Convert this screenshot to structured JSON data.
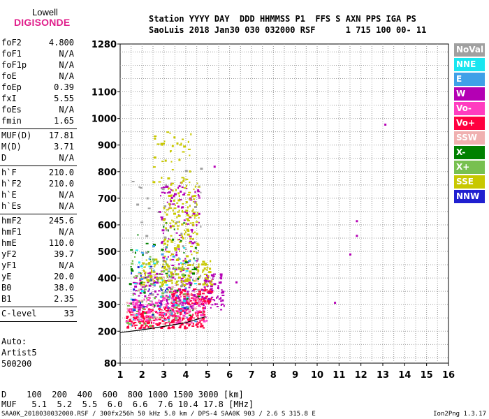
{
  "header": {
    "line1": "Station YYYY DAY  DDD HHMMSS P1  FFS S AXN PPS IGA PS",
    "line2": "SaoLuis 2018 Jan30 030 032000 RSF      1 715 100 00- 11"
  },
  "logo": {
    "line1": "Lowell",
    "line2": "DIGISONDE"
  },
  "params": [
    {
      "name": "foF2",
      "value": "4.800"
    },
    {
      "name": "foF1",
      "value": "N/A"
    },
    {
      "name": "foF1p",
      "value": "N/A"
    },
    {
      "name": "foE",
      "value": "N/A"
    },
    {
      "name": "foEp",
      "value": "0.39"
    },
    {
      "name": "fxI",
      "value": "5.55"
    },
    {
      "name": "foEs",
      "value": "N/A"
    },
    {
      "name": "fmin",
      "value": "1.65"
    },
    {
      "name": "MUF(D)",
      "value": "17.81"
    },
    {
      "name": "M(D)",
      "value": "3.71"
    },
    {
      "name": "D",
      "value": "N/A"
    },
    {
      "name": "h`F",
      "value": "210.0"
    },
    {
      "name": "h`F2",
      "value": "210.0"
    },
    {
      "name": "h`E",
      "value": "N/A"
    },
    {
      "name": "h`Es",
      "value": "N/A"
    },
    {
      "name": "hmF2",
      "value": "245.6"
    },
    {
      "name": "hmF1",
      "value": "N/A"
    },
    {
      "name": "hmE",
      "value": "110.0"
    },
    {
      "name": "yF2",
      "value": "39.7"
    },
    {
      "name": "yF1",
      "value": "N/A"
    },
    {
      "name": "yE",
      "value": "20.0"
    },
    {
      "name": "B0",
      "value": "38.0"
    },
    {
      "name": "B1",
      "value": "2.35"
    },
    {
      "name": "C-level",
      "value": "33"
    }
  ],
  "auto": [
    "Auto:",
    "Artist5",
    "500200"
  ],
  "legend": [
    {
      "label": "NoVal",
      "color": "#a0a0a0"
    },
    {
      "label": "NNE",
      "color": "#19e6f0"
    },
    {
      "label": "E",
      "color": "#3fa0e8"
    },
    {
      "label": "W",
      "color": "#b400b4"
    },
    {
      "label": "Vo-",
      "color": "#ff3cc0"
    },
    {
      "label": "Vo+",
      "color": "#ff0040"
    },
    {
      "label": "SSW",
      "color": "#f0b0b0"
    },
    {
      "label": "X-",
      "color": "#008000"
    },
    {
      "label": "X+",
      "color": "#78c050"
    },
    {
      "label": "SSE",
      "color": "#c8c800"
    },
    {
      "label": "NNW",
      "color": "#2020d0"
    }
  ],
  "footer": {
    "d_line": "D    100  200  400  600  800 1000 1500 3000 [km]",
    "muf_line": "MUF   5.1  5.2  5.5  6.0  6.6  7.6 10.4 17.8 [MHz]",
    "file_info": "SAA0K_2018030032000.RSF / 300fx256h 50 kHz 5.0 km / DPS-4 SAA0K 903 / 2.6 S 315.8 E",
    "version": "Ion2Png 1.3.17"
  },
  "chart_data": {
    "type": "scatter",
    "title": "",
    "xlabel": "",
    "ylabel": "",
    "xlim": [
      1,
      16
    ],
    "ylim": [
      80,
      1280
    ],
    "xticks": [
      1,
      2,
      3,
      4,
      5,
      6,
      7,
      8,
      9,
      10,
      11,
      12,
      13,
      14,
      15,
      16
    ],
    "yticks": [
      80,
      200,
      300,
      400,
      500,
      600,
      700,
      800,
      900,
      1000,
      1100,
      1280
    ],
    "grid": true,
    "legend_placement": "right",
    "trace_line": [
      [
        1.0,
        195
      ],
      [
        2.0,
        205
      ],
      [
        3.0,
        218
      ],
      [
        4.0,
        232
      ],
      [
        4.9,
        255
      ]
    ],
    "outliers": [
      [
        11.8,
        615
      ],
      [
        11.8,
        560
      ],
      [
        11.5,
        490
      ],
      [
        10.8,
        308
      ],
      [
        13.1,
        978
      ],
      [
        5.3,
        820
      ],
      [
        6.3,
        385
      ],
      [
        5.6,
        400
      ]
    ],
    "clusters": [
      {
        "series": "Vo+",
        "x": [
          1.3,
          4.9
        ],
        "y": [
          210,
          290
        ],
        "n": 260
      },
      {
        "series": "Vo+",
        "x": [
          3.2,
          5.2
        ],
        "y": [
          300,
          360
        ],
        "n": 120
      },
      {
        "series": "Vo-",
        "x": [
          1.3,
          5.0
        ],
        "y": [
          230,
          330
        ],
        "n": 170
      },
      {
        "series": "W",
        "x": [
          1.6,
          5.8
        ],
        "y": [
          280,
          420
        ],
        "n": 190
      },
      {
        "series": "W",
        "x": [
          2.8,
          4.7
        ],
        "y": [
          420,
          760
        ],
        "n": 110
      },
      {
        "series": "SSE",
        "x": [
          1.9,
          5.2
        ],
        "y": [
          370,
          470
        ],
        "n": 150
      },
      {
        "series": "SSE",
        "x": [
          3.0,
          4.6
        ],
        "y": [
          480,
          760
        ],
        "n": 140
      },
      {
        "series": "SSE",
        "x": [
          2.5,
          4.3
        ],
        "y": [
          760,
          960
        ],
        "n": 40
      },
      {
        "series": "X+",
        "x": [
          1.3,
          4.0
        ],
        "y": [
          220,
          480
        ],
        "n": 70
      },
      {
        "series": "X-",
        "x": [
          1.4,
          4.8
        ],
        "y": [
          250,
          620
        ],
        "n": 50
      },
      {
        "series": "E",
        "x": [
          1.5,
          4.5
        ],
        "y": [
          200,
          520
        ],
        "n": 40
      },
      {
        "series": "NNE",
        "x": [
          1.5,
          4.5
        ],
        "y": [
          260,
          520
        ],
        "n": 25
      },
      {
        "series": "NNW",
        "x": [
          1.5,
          4.0
        ],
        "y": [
          260,
          450
        ],
        "n": 25
      },
      {
        "series": "SSW",
        "x": [
          1.3,
          4.8
        ],
        "y": [
          220,
          420
        ],
        "n": 50
      },
      {
        "series": "NoVal",
        "x": [
          1.5,
          4.8
        ],
        "y": [
          240,
          820
        ],
        "n": 50
      }
    ]
  }
}
